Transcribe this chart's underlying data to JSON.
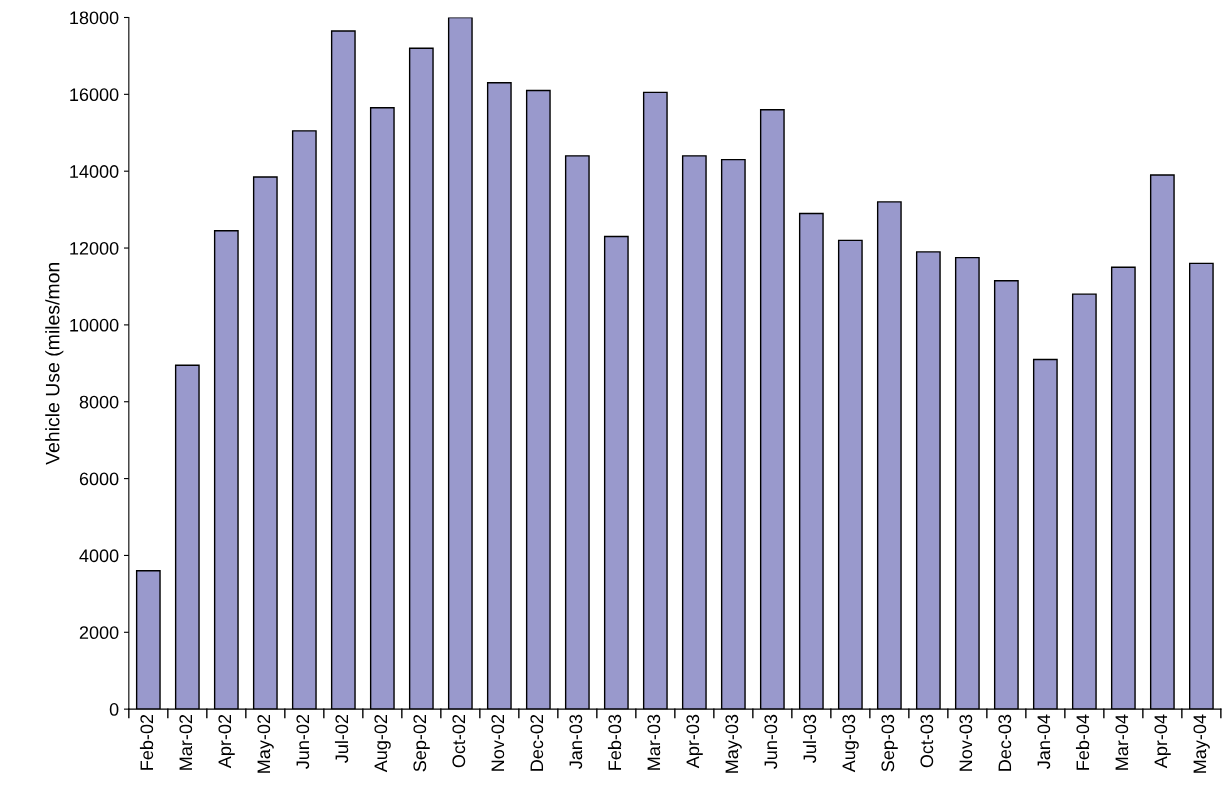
{
  "chart_data": {
    "type": "bar",
    "ylabel": "Vehicle Use (miles/mon",
    "categories": [
      "Feb-02",
      "Mar-02",
      "Apr-02",
      "May-02",
      "Jun-02",
      "Jul-02",
      "Aug-02",
      "Sep-02",
      "Oct-02",
      "Nov-02",
      "Dec-02",
      "Jan-03",
      "Feb-03",
      "Mar-03",
      "Apr-03",
      "May-03",
      "Jun-03",
      "Jul-03",
      "Aug-03",
      "Sep-03",
      "Oct-03",
      "Nov-03",
      "Dec-03",
      "Jan-04",
      "Feb-04",
      "Mar-04",
      "Apr-04",
      "May-04"
    ],
    "values": [
      3600,
      8950,
      12450,
      13850,
      15050,
      17650,
      15650,
      17200,
      18000,
      16300,
      16100,
      14400,
      12300,
      16050,
      14400,
      14300,
      15600,
      12900,
      12200,
      13200,
      11900,
      11750,
      11150,
      9100,
      10800,
      11500,
      13900,
      11600
    ],
    "color": "#9999cc",
    "ylim": [
      0,
      18000
    ],
    "yticks": [
      0,
      2000,
      4000,
      6000,
      8000,
      10000,
      12000,
      14000,
      16000,
      18000
    ],
    "grid": false,
    "legend": false
  }
}
